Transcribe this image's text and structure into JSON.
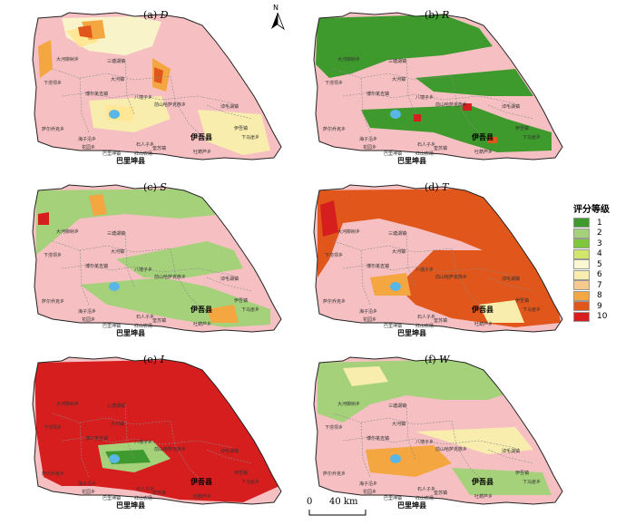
{
  "north_arrow": {
    "letter": "N"
  },
  "panels": [
    {
      "id": "a",
      "prefix": "(a) ",
      "var": "D",
      "colors": {
        "base": "#f6c0c3",
        "p1": "#f8f3c8",
        "p2": "#ffe796",
        "p3": "#f4a640",
        "p4": "#e0561b",
        "p5": "#f9edae",
        "river": "#ffffff"
      }
    },
    {
      "id": "b",
      "prefix": "(b) ",
      "var": "R",
      "colors": {
        "base": "#f6c0c3",
        "p1": "#3e9a2c",
        "p2": "#3e9a2c",
        "p3": "#e0561b",
        "p4": "#d71e1e",
        "p5": "#3e9a2c",
        "river": "#ffffff"
      }
    },
    {
      "id": "c",
      "prefix": "(c) ",
      "var": "S",
      "colors": {
        "base": "#f6c0c3",
        "p1": "#a5d17b",
        "p2": "#a5d17b",
        "p3": "#f4a640",
        "p4": "#d71e1e",
        "p5": "#a5d17b",
        "river": "#ffffff"
      }
    },
    {
      "id": "d",
      "prefix": "(d) ",
      "var": "T",
      "colors": {
        "base": "#f6c0c3",
        "p1": "#e0561b",
        "p2": "#e0561b",
        "p3": "#f4a640",
        "p4": "#d71e1e",
        "p5": "#f9edae",
        "river": "#ffffff"
      }
    },
    {
      "id": "e",
      "prefix": "(e) ",
      "var": "I",
      "colors": {
        "base": "#f6c0c3",
        "p1": "#d71e1e",
        "p2": "#d71e1e",
        "p3": "#3e9a2c",
        "p4": "#a5d17b",
        "p5": "#d71e1e",
        "river": "#ffffff"
      }
    },
    {
      "id": "f",
      "prefix": "(f) ",
      "var": "W",
      "colors": {
        "base": "#f6c0c3",
        "p1": "#a5d17b",
        "p2": "#f9edae",
        "p3": "#f4a640",
        "p4": "#f4a640",
        "p5": "#a5d17b",
        "river": "#ffffff"
      }
    }
  ],
  "map_labels": {
    "dahe": "大河柳树乡",
    "xiayi": "下涝坝乡",
    "sangtang": "三塘湖镇",
    "dahezhen": "大河镇",
    "boer": "博尔羌吉镇",
    "bahu": "八墙子乡",
    "ganqi": "淖毛湖镇",
    "kuoba": "萨尔乔克乡",
    "haizi": "海子沿乡",
    "huayuan": "花园乡",
    "bali": "巴里坤镇",
    "shiren": "石人子乡",
    "kuisu": "奎苏镇",
    "hongshan": "红山农场",
    "yiwu_town": "伊吾镇",
    "xiamao": "下马崖乡",
    "ertang": "吐葫芦乡",
    "qianshuijing": "前山哈萨克族乡",
    "county_bali": "巴里坤县",
    "county_yiwu": "伊吾县"
  },
  "legend": {
    "title": "评分等级",
    "items": [
      {
        "label": "1",
        "color": "#3e9a2c"
      },
      {
        "label": "2",
        "color": "#a5d17b"
      },
      {
        "label": "3",
        "color": "#7ec63a"
      },
      {
        "label": "4",
        "color": "#d2e66c"
      },
      {
        "label": "5",
        "color": "#fbf7d2"
      },
      {
        "label": "6",
        "color": "#f9edae"
      },
      {
        "label": "7",
        "color": "#f7c98c"
      },
      {
        "label": "8",
        "color": "#f4a640"
      },
      {
        "label": "9",
        "color": "#e0561b"
      },
      {
        "label": "10",
        "color": "#d71e1e"
      }
    ]
  },
  "scale_bar": {
    "zero": "0",
    "label": "40 km"
  }
}
